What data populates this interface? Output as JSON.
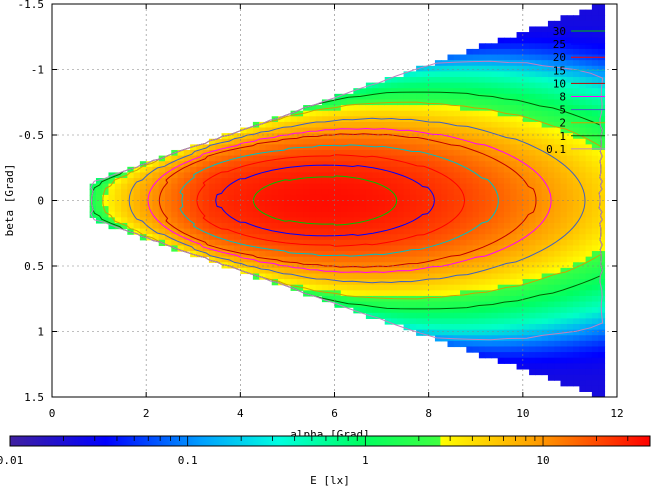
{
  "chart_data": {
    "type": "heatmap",
    "xlabel": "alpha [Grad]",
    "ylabel": "beta [Grad]",
    "colorbar_label": "E [lx]",
    "xlim": [
      0,
      12
    ],
    "ylim": [
      -1.5,
      1.5
    ],
    "y_axis_inverted": true,
    "grid": true,
    "legend_position": "top-right",
    "x_ticks": [
      "0",
      "2",
      "4",
      "6",
      "8",
      "10",
      "12"
    ],
    "x_tick_values": [
      0,
      2,
      4,
      6,
      8,
      10,
      12
    ],
    "y_ticks": [
      "-1.5",
      "-1",
      "-0.5",
      "0",
      "0.5",
      "1",
      "1.5"
    ],
    "y_tick_values": [
      -1.5,
      -1,
      -0.5,
      0,
      0.5,
      1,
      1.5
    ],
    "colorbar_scale": "log",
    "colorbar_range": [
      0.01,
      40
    ],
    "colorbar_ticks": [
      "0.01",
      "0.1",
      "1",
      "10"
    ],
    "colorbar_tick_values": [
      0.01,
      0.1,
      1,
      10
    ],
    "contour_levels": [
      {
        "label": "30",
        "value": 30,
        "color": "#00c000"
      },
      {
        "label": "25",
        "value": 25,
        "color": "#0000ff"
      },
      {
        "label": "20",
        "value": 20,
        "color": "#ff0000"
      },
      {
        "label": "15",
        "value": 15,
        "color": "#00c0c0"
      },
      {
        "label": "10",
        "value": 10,
        "color": "#c00000"
      },
      {
        "label": "8",
        "value": 8,
        "color": "#ff00ff"
      },
      {
        "label": "5",
        "value": 5,
        "color": "#4060c0"
      },
      {
        "label": "2",
        "value": 2,
        "color": "#d0a000"
      },
      {
        "label": "1",
        "value": 1,
        "color": "#006000"
      },
      {
        "label": "0.1",
        "value": 0.1,
        "color": "#c080c0"
      }
    ],
    "field": {
      "apex_alpha": 0.8,
      "max_alpha": 11.7,
      "half_width_at_max": 1.5,
      "peak_alpha": 5.8,
      "peak_beta": 0.0,
      "peak_value": 35
    }
  }
}
